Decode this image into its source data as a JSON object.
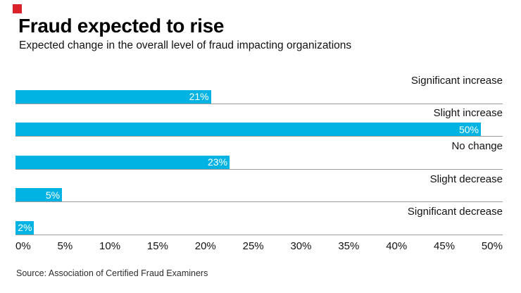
{
  "brand": {
    "mark_color": "#d9222a"
  },
  "header": {
    "title": "Fraud expected to rise",
    "subtitle": "Expected change in the overall level of fraud impacting organizations"
  },
  "chart_data": {
    "type": "bar",
    "orientation": "horizontal",
    "title": "Fraud expected to rise",
    "subtitle": "Expected change in the overall level of fraud impacting organizations",
    "categories": [
      "Significant increase",
      "Slight increase",
      "No change",
      "Slight decrease",
      "Significant decrease"
    ],
    "values": [
      21,
      50,
      23,
      5,
      2
    ],
    "value_labels": [
      "21%",
      "50%",
      "23%",
      "5%",
      "2%"
    ],
    "xlim": [
      0,
      50
    ],
    "x_ticks": [
      "0%",
      "5%",
      "10%",
      "15%",
      "20%",
      "25%",
      "30%",
      "35%",
      "40%",
      "45%",
      "50%"
    ],
    "bar_color": "#00b3e3",
    "baseline_color": "#9c9c9c",
    "legend": "none",
    "grid": "horizontal baselines under each bar only"
  },
  "footer": {
    "source": "Source: Association of Certified Fraud Examiners"
  }
}
